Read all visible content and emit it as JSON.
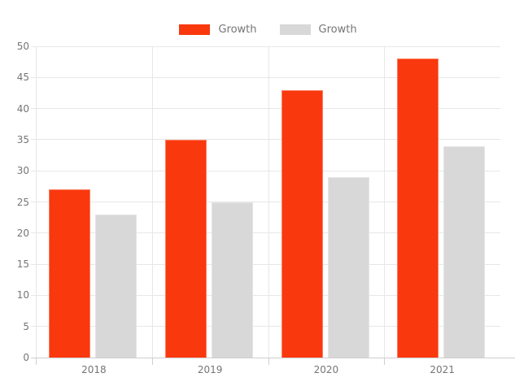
{
  "chart_data": {
    "type": "bar",
    "title": "",
    "categories": [
      "2018",
      "2019",
      "2020",
      "2021"
    ],
    "series": [
      {
        "name": "Growth",
        "color": "#fa380d",
        "values": [
          27,
          35,
          43,
          48
        ]
      },
      {
        "name": "Growth",
        "color": "#d8d8d8",
        "values": [
          23,
          25,
          29,
          34
        ]
      }
    ],
    "xlabel": "",
    "ylabel": "",
    "ylim": [
      0,
      50
    ],
    "ytick_step": 5,
    "yticks": [
      0,
      5,
      10,
      15,
      20,
      25,
      30,
      35,
      40,
      45,
      50
    ],
    "grid": true,
    "legend_position": "top-center"
  },
  "styles": {
    "background": "#ffffff",
    "axis_label_color": "#757575",
    "grid_color": "#e7e7e7",
    "axis_line_color": "#cfcfcf"
  }
}
